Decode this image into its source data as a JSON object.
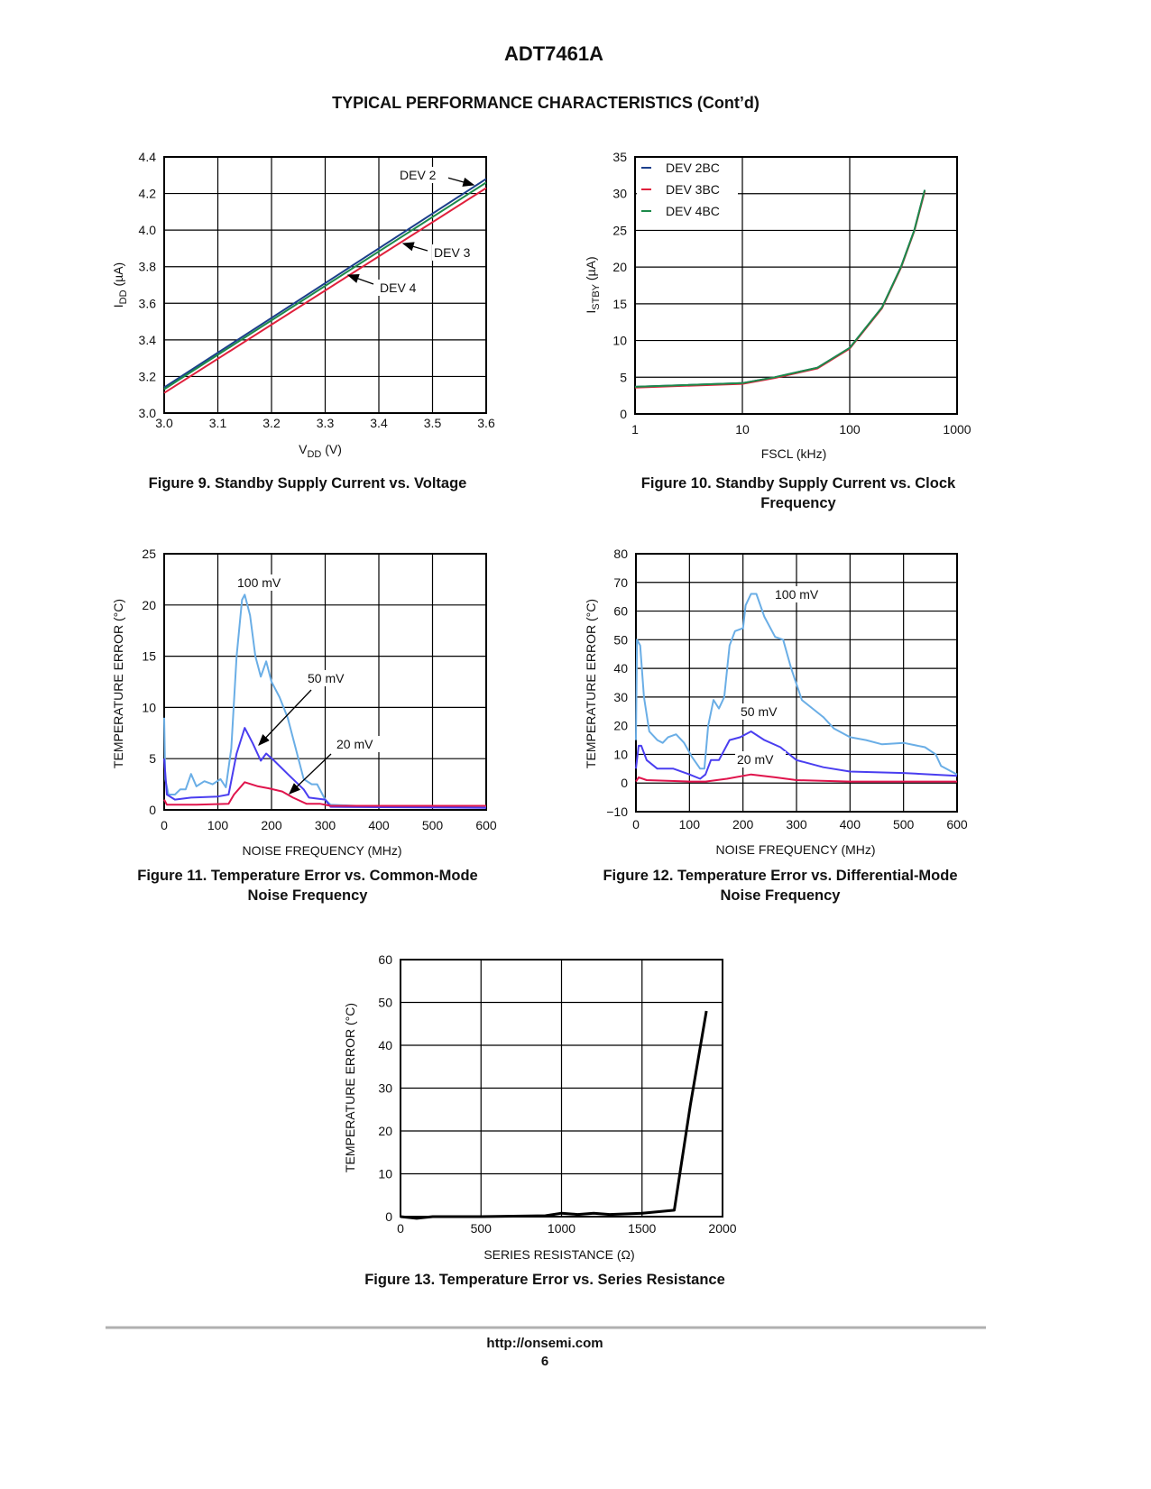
{
  "header": {
    "title": "ADT7461A",
    "subtitle": "TYPICAL PERFORMANCE CHARACTERISTICS (Cont’d)"
  },
  "footer": {
    "url": "http://onsemi.com",
    "page": "6"
  },
  "chart_data": [
    {
      "type": "line",
      "caption": [
        "Figure 9. Standby Supply Current vs. Voltage"
      ],
      "xlabel": {
        "main": "V",
        "sub": "DD",
        "suffix": " (V)"
      },
      "ylabel": {
        "main": "I",
        "sub": "DD",
        "suffix": " (µA)"
      },
      "xscale": "linear",
      "xlim": [
        3.0,
        3.6
      ],
      "ylim": [
        3.0,
        4.4
      ],
      "xticks": [
        3.0,
        3.1,
        3.2,
        3.3,
        3.4,
        3.5,
        3.6
      ],
      "xtick_labels": [
        "3.0",
        "3.1",
        "3.2",
        "3.3",
        "3.4",
        "3.5",
        "3.6"
      ],
      "yticks": [
        3.0,
        3.2,
        3.4,
        3.6,
        3.8,
        4.0,
        4.2,
        4.4
      ],
      "ytick_labels": [
        "3.0",
        "3.2",
        "3.4",
        "3.6",
        "3.8",
        "4.0",
        "4.2",
        "4.4"
      ],
      "grid": true,
      "series": [
        {
          "name": "DEV 2",
          "color": "#1c3f8c",
          "points": [
            [
              3.0,
              3.14
            ],
            [
              3.6,
              4.28
            ]
          ]
        },
        {
          "name": "DEV 4",
          "color": "#1d8a4a",
          "points": [
            [
              3.0,
              3.13
            ],
            [
              3.6,
              4.26
            ]
          ]
        },
        {
          "name": "DEV 3",
          "color": "#e0203c",
          "points": [
            [
              3.0,
              3.11
            ],
            [
              3.6,
              4.23
            ]
          ]
        }
      ],
      "annotations": [
        "DEV 2",
        "DEV 3",
        "DEV 4"
      ]
    },
    {
      "type": "line",
      "caption": [
        "Figure 10. Standby Supply Current vs. Clock",
        "Frequency"
      ],
      "xlabel": {
        "main": "FSCL (kHz)",
        "sub": "",
        "suffix": ""
      },
      "ylabel": {
        "main": "I",
        "sub": "STBY",
        "suffix": " (µA)"
      },
      "xscale": "log",
      "xlim": [
        1,
        1000
      ],
      "ylim": [
        0,
        35
      ],
      "xticks": [
        1,
        10,
        100,
        1000
      ],
      "xtick_labels": [
        "1",
        "10",
        "100",
        "1000"
      ],
      "yticks": [
        0,
        5,
        10,
        15,
        20,
        25,
        30,
        35
      ],
      "ytick_labels": [
        "0",
        "5",
        "10",
        "15",
        "20",
        "25",
        "30",
        "35"
      ],
      "grid": true,
      "legend": {
        "placement": "top-left",
        "entries": [
          "DEV 2BC",
          "DEV 3BC",
          "DEV 4BC"
        ]
      },
      "series": [
        {
          "name": "DEV 2BC",
          "color": "#1c3f8c",
          "points": [
            [
              1,
              3.7
            ],
            [
              10,
              4.2
            ],
            [
              20,
              5.0
            ],
            [
              50,
              6.3
            ],
            [
              100,
              9.0
            ],
            [
              200,
              14.5
            ],
            [
              300,
              20
            ],
            [
              400,
              25
            ],
            [
              500,
              30.5
            ]
          ]
        },
        {
          "name": "DEV 3BC",
          "color": "#e0203c",
          "points": [
            [
              1,
              3.6
            ],
            [
              10,
              4.1
            ],
            [
              20,
              4.9
            ],
            [
              50,
              6.2
            ],
            [
              100,
              8.9
            ],
            [
              200,
              14.4
            ],
            [
              300,
              19.9
            ],
            [
              400,
              24.9
            ],
            [
              500,
              30.3
            ]
          ]
        },
        {
          "name": "DEV 4BC",
          "color": "#1d8a4a",
          "points": [
            [
              1,
              3.7
            ],
            [
              10,
              4.2
            ],
            [
              20,
              5.0
            ],
            [
              50,
              6.3
            ],
            [
              100,
              9.0
            ],
            [
              200,
              14.5
            ],
            [
              300,
              20
            ],
            [
              400,
              25
            ],
            [
              500,
              30.5
            ]
          ]
        }
      ]
    },
    {
      "type": "line",
      "caption": [
        "Figure 11. Temperature Error vs. Common-Mode",
        "Noise Frequency"
      ],
      "xlabel": {
        "main": "NOISE FREQUENCY (MHz)",
        "sub": "",
        "suffix": ""
      },
      "ylabel": {
        "main": "TEMPERATURE ERROR (°C)",
        "sub": "",
        "suffix": ""
      },
      "xscale": "linear",
      "xlim": [
        0,
        600
      ],
      "ylim": [
        0,
        25
      ],
      "xticks": [
        0,
        100,
        200,
        300,
        400,
        500,
        600
      ],
      "xtick_labels": [
        "0",
        "100",
        "200",
        "300",
        "400",
        "500",
        "600"
      ],
      "yticks": [
        0,
        5,
        10,
        15,
        20,
        25
      ],
      "ytick_labels": [
        "0",
        "5",
        "10",
        "15",
        "20",
        "25"
      ],
      "grid": true,
      "series": [
        {
          "name": "100 mV",
          "color": "#6aaee6",
          "points": [
            [
              0,
              9
            ],
            [
              2,
              3
            ],
            [
              8,
              1.5
            ],
            [
              20,
              1.5
            ],
            [
              30,
              2
            ],
            [
              40,
              2
            ],
            [
              50,
              3.5
            ],
            [
              60,
              2.3
            ],
            [
              75,
              2.8
            ],
            [
              90,
              2.5
            ],
            [
              105,
              3
            ],
            [
              115,
              2.2
            ],
            [
              125,
              6
            ],
            [
              135,
              15
            ],
            [
              145,
              20.5
            ],
            [
              150,
              21
            ],
            [
              160,
              19
            ],
            [
              170,
              15
            ],
            [
              180,
              13
            ],
            [
              190,
              14.5
            ],
            [
              200,
              12.5
            ],
            [
              215,
              11
            ],
            [
              230,
              9
            ],
            [
              245,
              6
            ],
            [
              260,
              3
            ],
            [
              275,
              2.5
            ],
            [
              285,
              2.5
            ],
            [
              300,
              1
            ],
            [
              310,
              0.5
            ],
            [
              400,
              0.3
            ],
            [
              600,
              0.3
            ]
          ]
        },
        {
          "name": "50 mV",
          "color": "#4a3ef0",
          "points": [
            [
              0,
              5
            ],
            [
              5,
              1.5
            ],
            [
              20,
              1
            ],
            [
              50,
              1.2
            ],
            [
              100,
              1.3
            ],
            [
              120,
              1.5
            ],
            [
              135,
              5.5
            ],
            [
              150,
              8
            ],
            [
              165,
              6.5
            ],
            [
              180,
              4.8
            ],
            [
              190,
              5.5
            ],
            [
              205,
              4.8
            ],
            [
              230,
              3.5
            ],
            [
              260,
              2
            ],
            [
              270,
              1.2
            ],
            [
              300,
              1
            ],
            [
              310,
              0.3
            ],
            [
              600,
              0.2
            ]
          ]
        },
        {
          "name": "20 mV",
          "color": "#e0144c",
          "points": [
            [
              0,
              1
            ],
            [
              5,
              0.5
            ],
            [
              60,
              0.5
            ],
            [
              120,
              0.6
            ],
            [
              130,
              1.5
            ],
            [
              150,
              2.7
            ],
            [
              175,
              2.3
            ],
            [
              195,
              2.1
            ],
            [
              220,
              1.8
            ],
            [
              240,
              1.2
            ],
            [
              265,
              0.6
            ],
            [
              290,
              0.6
            ],
            [
              310,
              0.4
            ],
            [
              600,
              0.4
            ]
          ]
        }
      ],
      "annotations": [
        "100 mV",
        "50 mV",
        "20 mV"
      ]
    },
    {
      "type": "line",
      "caption": [
        "Figure 12. Temperature Error vs. Differential-Mode",
        "Noise Frequency"
      ],
      "xlabel": {
        "main": "NOISE FREQUENCY (MHz)",
        "sub": "",
        "suffix": ""
      },
      "ylabel": {
        "main": "TEMPERATURE ERROR (°C)",
        "sub": "",
        "suffix": ""
      },
      "xscale": "linear",
      "xlim": [
        0,
        600
      ],
      "ylim": [
        -10,
        80
      ],
      "xticks": [
        0,
        100,
        200,
        300,
        400,
        500,
        600
      ],
      "xtick_labels": [
        "0",
        "100",
        "200",
        "300",
        "400",
        "500",
        "600"
      ],
      "yticks": [
        -10,
        0,
        10,
        20,
        30,
        40,
        50,
        60,
        70,
        80
      ],
      "ytick_labels": [
        "−10",
        "0",
        "10",
        "20",
        "30",
        "40",
        "50",
        "60",
        "70",
        "80"
      ],
      "grid": true,
      "series": [
        {
          "name": "100 mV",
          "color": "#6aaee6",
          "points": [
            [
              0,
              15
            ],
            [
              2,
              50
            ],
            [
              8,
              48
            ],
            [
              15,
              30
            ],
            [
              25,
              18
            ],
            [
              40,
              15
            ],
            [
              50,
              14
            ],
            [
              60,
              16
            ],
            [
              75,
              17
            ],
            [
              90,
              14
            ],
            [
              105,
              9
            ],
            [
              120,
              5
            ],
            [
              128,
              5
            ],
            [
              135,
              20
            ],
            [
              145,
              29
            ],
            [
              155,
              26
            ],
            [
              165,
              30
            ],
            [
              175,
              48
            ],
            [
              185,
              53
            ],
            [
              200,
              54
            ],
            [
              205,
              62
            ],
            [
              215,
              66
            ],
            [
              225,
              66
            ],
            [
              240,
              58
            ],
            [
              260,
              51
            ],
            [
              275,
              50
            ],
            [
              290,
              40
            ],
            [
              310,
              29
            ],
            [
              330,
              26
            ],
            [
              350,
              23
            ],
            [
              370,
              19
            ],
            [
              400,
              16
            ],
            [
              430,
              15
            ],
            [
              460,
              13.5
            ],
            [
              500,
              14
            ],
            [
              540,
              12.5
            ],
            [
              560,
              10
            ],
            [
              570,
              6
            ],
            [
              600,
              3
            ]
          ]
        },
        {
          "name": "50 mV",
          "color": "#4a3ef0",
          "points": [
            [
              0,
              5
            ],
            [
              5,
              13
            ],
            [
              10,
              13
            ],
            [
              20,
              8
            ],
            [
              40,
              5
            ],
            [
              70,
              5
            ],
            [
              100,
              3
            ],
            [
              120,
              1.5
            ],
            [
              130,
              3
            ],
            [
              140,
              8
            ],
            [
              155,
              8
            ],
            [
              175,
              15
            ],
            [
              195,
              16
            ],
            [
              215,
              18
            ],
            [
              240,
              15
            ],
            [
              270,
              12.5
            ],
            [
              300,
              8
            ],
            [
              350,
              5.5
            ],
            [
              400,
              4
            ],
            [
              500,
              3.5
            ],
            [
              600,
              2.5
            ]
          ]
        },
        {
          "name": "20 mV",
          "color": "#e0144c",
          "points": [
            [
              0,
              0.5
            ],
            [
              5,
              2
            ],
            [
              20,
              1
            ],
            [
              100,
              0.5
            ],
            [
              130,
              0.5
            ],
            [
              170,
              1.5
            ],
            [
              215,
              3
            ],
            [
              260,
              2
            ],
            [
              300,
              1
            ],
            [
              400,
              0.5
            ],
            [
              600,
              0.5
            ]
          ]
        }
      ],
      "annotations": [
        "100 mV",
        "50 mV",
        "20 mV"
      ]
    },
    {
      "type": "line",
      "caption": [
        "Figure 13. Temperature Error vs. Series Resistance"
      ],
      "xlabel": {
        "main": "SERIES RESISTANCE (Ω)",
        "sub": "",
        "suffix": ""
      },
      "ylabel": {
        "main": "TEMPERATURE ERROR (°C)",
        "sub": "",
        "suffix": ""
      },
      "xscale": "linear",
      "xlim": [
        0,
        2000
      ],
      "ylim": [
        0,
        60
      ],
      "xticks": [
        0,
        500,
        1000,
        1500,
        2000
      ],
      "xtick_labels": [
        "0",
        "500",
        "1000",
        "1500",
        "2000"
      ],
      "yticks": [
        0,
        10,
        20,
        30,
        40,
        50,
        60
      ],
      "ytick_labels": [
        "0",
        "10",
        "20",
        "30",
        "40",
        "50",
        "60"
      ],
      "grid": true,
      "series": [
        {
          "name": "Temperature Error",
          "color": "#000000",
          "points": [
            [
              0,
              0
            ],
            [
              100,
              -0.4
            ],
            [
              200,
              0
            ],
            [
              500,
              0
            ],
            [
              900,
              0.2
            ],
            [
              1000,
              0.8
            ],
            [
              1100,
              0.5
            ],
            [
              1200,
              0.8
            ],
            [
              1300,
              0.5
            ],
            [
              1500,
              0.8
            ],
            [
              1700,
              1.5
            ],
            [
              1800,
              26
            ],
            [
              1900,
              48
            ]
          ]
        }
      ]
    }
  ]
}
